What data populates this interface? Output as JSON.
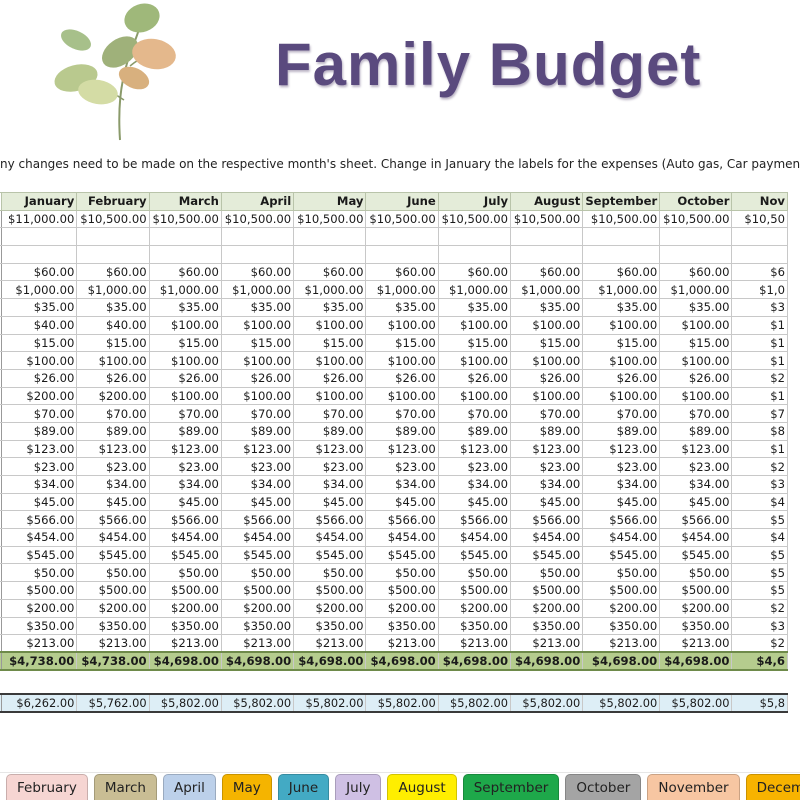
{
  "header": {
    "title": "Family Budget",
    "instructions": "ny changes need to be made on the respective month's sheet. Change in January the labels for the expenses (Auto gas, Car payment, etc.) an"
  },
  "table": {
    "months": [
      "January",
      "February",
      "March",
      "April",
      "May",
      "June",
      "July",
      "August",
      "September",
      "October",
      "Nov"
    ],
    "income": [
      "$11,000.00",
      "$10,500.00",
      "$10,500.00",
      "$10,500.00",
      "$10,500.00",
      "$10,500.00",
      "$10,500.00",
      "$10,500.00",
      "$10,500.00",
      "$10,500.00",
      "$10,50"
    ],
    "expenses": [
      [
        "$60.00",
        "$60.00",
        "$60.00",
        "$60.00",
        "$60.00",
        "$60.00",
        "$60.00",
        "$60.00",
        "$60.00",
        "$60.00",
        "$6"
      ],
      [
        "$1,000.00",
        "$1,000.00",
        "$1,000.00",
        "$1,000.00",
        "$1,000.00",
        "$1,000.00",
        "$1,000.00",
        "$1,000.00",
        "$1,000.00",
        "$1,000.00",
        "$1,0"
      ],
      [
        "$35.00",
        "$35.00",
        "$35.00",
        "$35.00",
        "$35.00",
        "$35.00",
        "$35.00",
        "$35.00",
        "$35.00",
        "$35.00",
        "$3"
      ],
      [
        "$40.00",
        "$40.00",
        "$100.00",
        "$100.00",
        "$100.00",
        "$100.00",
        "$100.00",
        "$100.00",
        "$100.00",
        "$100.00",
        "$1"
      ],
      [
        "$15.00",
        "$15.00",
        "$15.00",
        "$15.00",
        "$15.00",
        "$15.00",
        "$15.00",
        "$15.00",
        "$15.00",
        "$15.00",
        "$1"
      ],
      [
        "$100.00",
        "$100.00",
        "$100.00",
        "$100.00",
        "$100.00",
        "$100.00",
        "$100.00",
        "$100.00",
        "$100.00",
        "$100.00",
        "$1"
      ],
      [
        "$26.00",
        "$26.00",
        "$26.00",
        "$26.00",
        "$26.00",
        "$26.00",
        "$26.00",
        "$26.00",
        "$26.00",
        "$26.00",
        "$2"
      ],
      [
        "$200.00",
        "$200.00",
        "$100.00",
        "$100.00",
        "$100.00",
        "$100.00",
        "$100.00",
        "$100.00",
        "$100.00",
        "$100.00",
        "$1"
      ],
      [
        "$70.00",
        "$70.00",
        "$70.00",
        "$70.00",
        "$70.00",
        "$70.00",
        "$70.00",
        "$70.00",
        "$70.00",
        "$70.00",
        "$7"
      ],
      [
        "$89.00",
        "$89.00",
        "$89.00",
        "$89.00",
        "$89.00",
        "$89.00",
        "$89.00",
        "$89.00",
        "$89.00",
        "$89.00",
        "$8"
      ],
      [
        "$123.00",
        "$123.00",
        "$123.00",
        "$123.00",
        "$123.00",
        "$123.00",
        "$123.00",
        "$123.00",
        "$123.00",
        "$123.00",
        "$1"
      ],
      [
        "$23.00",
        "$23.00",
        "$23.00",
        "$23.00",
        "$23.00",
        "$23.00",
        "$23.00",
        "$23.00",
        "$23.00",
        "$23.00",
        "$2"
      ],
      [
        "$34.00",
        "$34.00",
        "$34.00",
        "$34.00",
        "$34.00",
        "$34.00",
        "$34.00",
        "$34.00",
        "$34.00",
        "$34.00",
        "$3"
      ],
      [
        "$45.00",
        "$45.00",
        "$45.00",
        "$45.00",
        "$45.00",
        "$45.00",
        "$45.00",
        "$45.00",
        "$45.00",
        "$45.00",
        "$4"
      ],
      [
        "$566.00",
        "$566.00",
        "$566.00",
        "$566.00",
        "$566.00",
        "$566.00",
        "$566.00",
        "$566.00",
        "$566.00",
        "$566.00",
        "$5"
      ],
      [
        "$454.00",
        "$454.00",
        "$454.00",
        "$454.00",
        "$454.00",
        "$454.00",
        "$454.00",
        "$454.00",
        "$454.00",
        "$454.00",
        "$4"
      ],
      [
        "$545.00",
        "$545.00",
        "$545.00",
        "$545.00",
        "$545.00",
        "$545.00",
        "$545.00",
        "$545.00",
        "$545.00",
        "$545.00",
        "$5"
      ],
      [
        "$50.00",
        "$50.00",
        "$50.00",
        "$50.00",
        "$50.00",
        "$50.00",
        "$50.00",
        "$50.00",
        "$50.00",
        "$50.00",
        "$5"
      ],
      [
        "$500.00",
        "$500.00",
        "$500.00",
        "$500.00",
        "$500.00",
        "$500.00",
        "$500.00",
        "$500.00",
        "$500.00",
        "$500.00",
        "$5"
      ],
      [
        "$200.00",
        "$200.00",
        "$200.00",
        "$200.00",
        "$200.00",
        "$200.00",
        "$200.00",
        "$200.00",
        "$200.00",
        "$200.00",
        "$2"
      ],
      [
        "$350.00",
        "$350.00",
        "$350.00",
        "$350.00",
        "$350.00",
        "$350.00",
        "$350.00",
        "$350.00",
        "$350.00",
        "$350.00",
        "$3"
      ],
      [
        "$213.00",
        "$213.00",
        "$213.00",
        "$213.00",
        "$213.00",
        "$213.00",
        "$213.00",
        "$213.00",
        "$213.00",
        "$213.00",
        "$2"
      ]
    ],
    "totals": [
      "$4,738.00",
      "$4,738.00",
      "$4,698.00",
      "$4,698.00",
      "$4,698.00",
      "$4,698.00",
      "$4,698.00",
      "$4,698.00",
      "$4,698.00",
      "$4,698.00",
      "$4,6"
    ],
    "net": [
      "$6,262.00",
      "$5,762.00",
      "$5,802.00",
      "$5,802.00",
      "$5,802.00",
      "$5,802.00",
      "$5,802.00",
      "$5,802.00",
      "$5,802.00",
      "$5,802.00",
      "$5,8"
    ]
  },
  "tabs": [
    {
      "label": "February",
      "color": "#f6d5d2"
    },
    {
      "label": "March",
      "color": "#c9bd94"
    },
    {
      "label": "April",
      "color": "#bcd0ea"
    },
    {
      "label": "May",
      "color": "#f5b400"
    },
    {
      "label": "June",
      "color": "#43aac4"
    },
    {
      "label": "July",
      "color": "#cfc0e4"
    },
    {
      "label": "August",
      "color": "#ffee00"
    },
    {
      "label": "September",
      "color": "#1ea84a"
    },
    {
      "label": "October",
      "color": "#a4a4a4"
    },
    {
      "label": "November",
      "color": "#f7c6a2"
    },
    {
      "label": "December",
      "color": "#f7b300"
    }
  ],
  "colors": {
    "title": "#5a4a7e",
    "header_fill": "#e4ecd9",
    "total_fill": "#b5cc8e",
    "net_fill": "#ddeef6"
  },
  "icons": {
    "decoration": "leaf-branch-illustration"
  }
}
